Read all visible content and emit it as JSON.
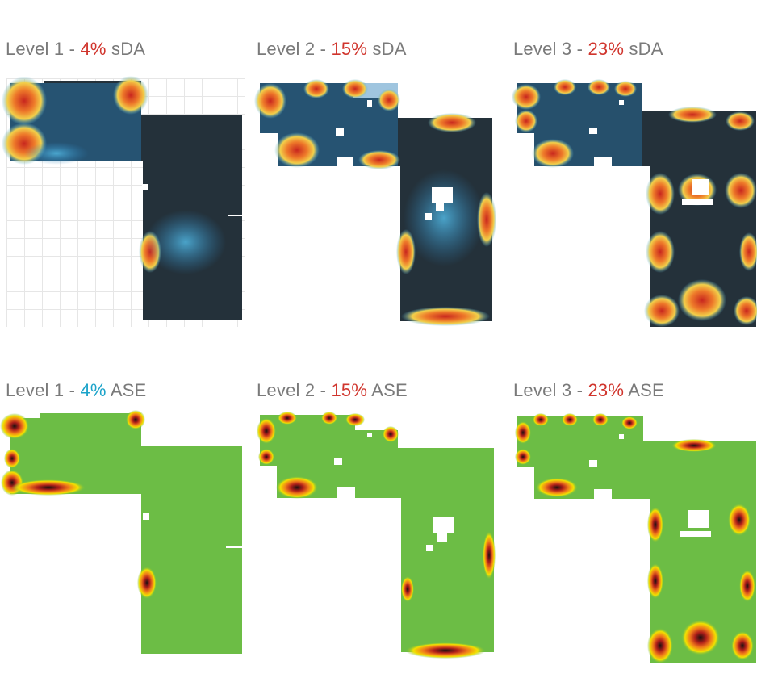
{
  "panels": [
    {
      "level": "Level 1",
      "sep": " - ",
      "value": "4%",
      "metric": "sDA",
      "value_color": "#d0342c"
    },
    {
      "level": "Level 2",
      "sep": " - ",
      "value": "15%",
      "metric": "sDA",
      "value_color": "#d0342c"
    },
    {
      "level": "Level 3",
      "sep": " - ",
      "value": "23%",
      "metric": "sDA",
      "value_color": "#d0342c"
    },
    {
      "level": "Level 1",
      "sep": " - ",
      "value": "4%",
      "metric": "ASE",
      "value_color": "#1ba3c9"
    },
    {
      "level": "Level 2",
      "sep": " - ",
      "value": "15%",
      "metric": "ASE",
      "value_color": "#d0342c"
    },
    {
      "level": "Level 3",
      "sep": " - ",
      "value": "23%",
      "metric": "ASE",
      "value_color": "#d0342c"
    }
  ],
  "colors": {
    "title_gray": "#7a7a7a",
    "sda_dark": "#24313a",
    "sda_blue": "#2b7fb8",
    "sda_light_blue": "#4fb0d9",
    "sda_yellow": "#f2d04a",
    "sda_orange": "#ee7a2a",
    "sda_red": "#c8261e",
    "ase_green": "#6cbd45",
    "ase_yellow": "#f2e200",
    "ase_orange": "#f07a1a",
    "ase_red": "#b0201a",
    "ase_black": "#1a1010"
  }
}
